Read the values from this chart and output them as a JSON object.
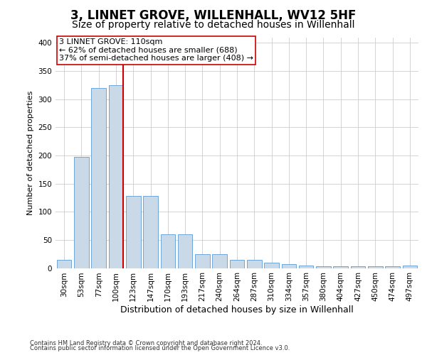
{
  "title": "3, LINNET GROVE, WILLENHALL, WV12 5HF",
  "subtitle": "Size of property relative to detached houses in Willenhall",
  "xlabel": "Distribution of detached houses by size in Willenhall",
  "ylabel": "Number of detached properties",
  "bar_color": "#c9d9e8",
  "bar_edge_color": "#5b9bd5",
  "categories": [
    "30sqm",
    "53sqm",
    "77sqm",
    "100sqm",
    "123sqm",
    "147sqm",
    "170sqm",
    "193sqm",
    "217sqm",
    "240sqm",
    "264sqm",
    "287sqm",
    "310sqm",
    "334sqm",
    "357sqm",
    "380sqm",
    "404sqm",
    "427sqm",
    "450sqm",
    "474sqm",
    "497sqm"
  ],
  "values": [
    15,
    197,
    320,
    325,
    128,
    128,
    60,
    60,
    25,
    25,
    14,
    14,
    10,
    7,
    5,
    3,
    3,
    3,
    3,
    3,
    5
  ],
  "ylim": [
    0,
    410
  ],
  "yticks": [
    0,
    50,
    100,
    150,
    200,
    250,
    300,
    350,
    400
  ],
  "vline_x": 3.4,
  "annotation_line1": "3 LINNET GROVE: 110sqm",
  "annotation_line2": "← 62% of detached houses are smaller (688)",
  "annotation_line3": "37% of semi-detached houses are larger (408) →",
  "vline_color": "#cc0000",
  "annotation_box_facecolor": "#ffffff",
  "annotation_box_edgecolor": "#cc0000",
  "footer1": "Contains HM Land Registry data © Crown copyright and database right 2024.",
  "footer2": "Contains public sector information licensed under the Open Government Licence v3.0.",
  "background_color": "#ffffff",
  "grid_color": "#cccccc",
  "title_fontsize": 12,
  "subtitle_fontsize": 10,
  "ylabel_fontsize": 8,
  "xlabel_fontsize": 9,
  "tick_fontsize": 7.5,
  "annotation_fontsize": 8,
  "footer_fontsize": 6
}
